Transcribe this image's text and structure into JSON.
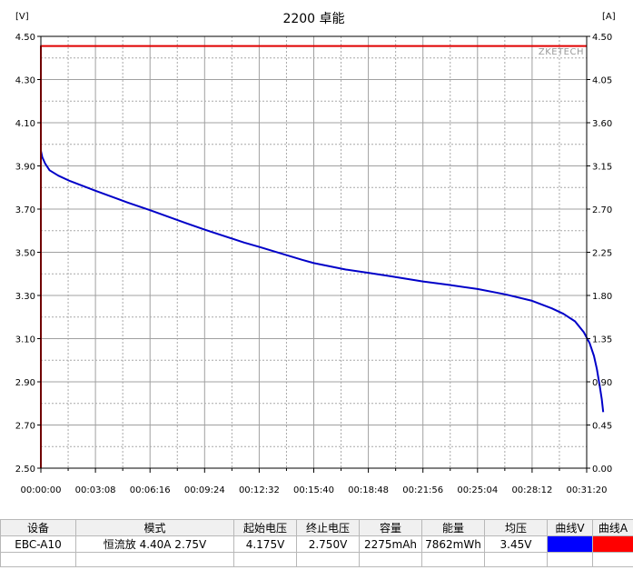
{
  "chart_data": {
    "type": "line",
    "title": "2200 卓能",
    "watermark": "ZKETECH",
    "left_axis": {
      "unit": "[V]",
      "ticks": [
        "4.50",
        "4.30",
        "4.10",
        "3.90",
        "3.70",
        "3.50",
        "3.30",
        "3.10",
        "2.90",
        "2.70",
        "2.50"
      ],
      "range": [
        2.5,
        4.5
      ]
    },
    "right_axis": {
      "unit": "[A]",
      "ticks": [
        "4.50",
        "4.05",
        "3.60",
        "3.15",
        "2.70",
        "2.25",
        "1.80",
        "1.35",
        "0.90",
        "0.45",
        "0.00"
      ],
      "range": [
        0.0,
        4.5
      ]
    },
    "x_axis": {
      "ticks": [
        "00:00:00",
        "00:03:08",
        "00:06:16",
        "00:09:24",
        "00:12:32",
        "00:15:40",
        "00:18:48",
        "00:21:56",
        "00:25:04",
        "00:28:12",
        "00:31:20"
      ],
      "range_seconds": [
        0,
        1880
      ]
    },
    "grid": true,
    "series": [
      {
        "axis": "left",
        "color": "#0000c8",
        "points": [
          [
            0,
            3.97
          ],
          [
            5,
            3.94
          ],
          [
            15,
            3.91
          ],
          [
            30,
            3.88
          ],
          [
            60,
            3.855
          ],
          [
            100,
            3.83
          ],
          [
            188,
            3.785
          ],
          [
            300,
            3.73
          ],
          [
            376,
            3.695
          ],
          [
            500,
            3.635
          ],
          [
            564,
            3.605
          ],
          [
            700,
            3.545
          ],
          [
            752,
            3.525
          ],
          [
            900,
            3.465
          ],
          [
            940,
            3.45
          ],
          [
            1050,
            3.42
          ],
          [
            1128,
            3.405
          ],
          [
            1200,
            3.39
          ],
          [
            1316,
            3.365
          ],
          [
            1400,
            3.35
          ],
          [
            1504,
            3.33
          ],
          [
            1600,
            3.305
          ],
          [
            1692,
            3.275
          ],
          [
            1760,
            3.24
          ],
          [
            1800,
            3.215
          ],
          [
            1840,
            3.18
          ],
          [
            1870,
            3.13
          ],
          [
            1890,
            3.08
          ],
          [
            1905,
            3.02
          ],
          [
            1915,
            2.96
          ],
          [
            1925,
            2.88
          ],
          [
            1932,
            2.82
          ],
          [
            1937,
            2.76
          ]
        ]
      },
      {
        "axis": "right",
        "color": "#e00000",
        "points": [
          [
            0,
            0.0
          ],
          [
            0,
            4.4
          ],
          [
            1880,
            4.4
          ]
        ]
      }
    ]
  },
  "summary_table": {
    "headers": [
      "设备",
      "模式",
      "起始电压",
      "终止电压",
      "容量",
      "能量",
      "均压",
      "曲线V",
      "曲线A"
    ],
    "row": {
      "device": "EBC-A10",
      "mode": "恒流放  4.40A  2.75V",
      "start_voltage": "4.175V",
      "end_voltage": "2.750V",
      "capacity": "2275mAh",
      "energy": "7862mWh",
      "avg_voltage": "3.45V"
    },
    "curve_v_color": "#0000ff",
    "curve_a_color": "#ff0000"
  }
}
